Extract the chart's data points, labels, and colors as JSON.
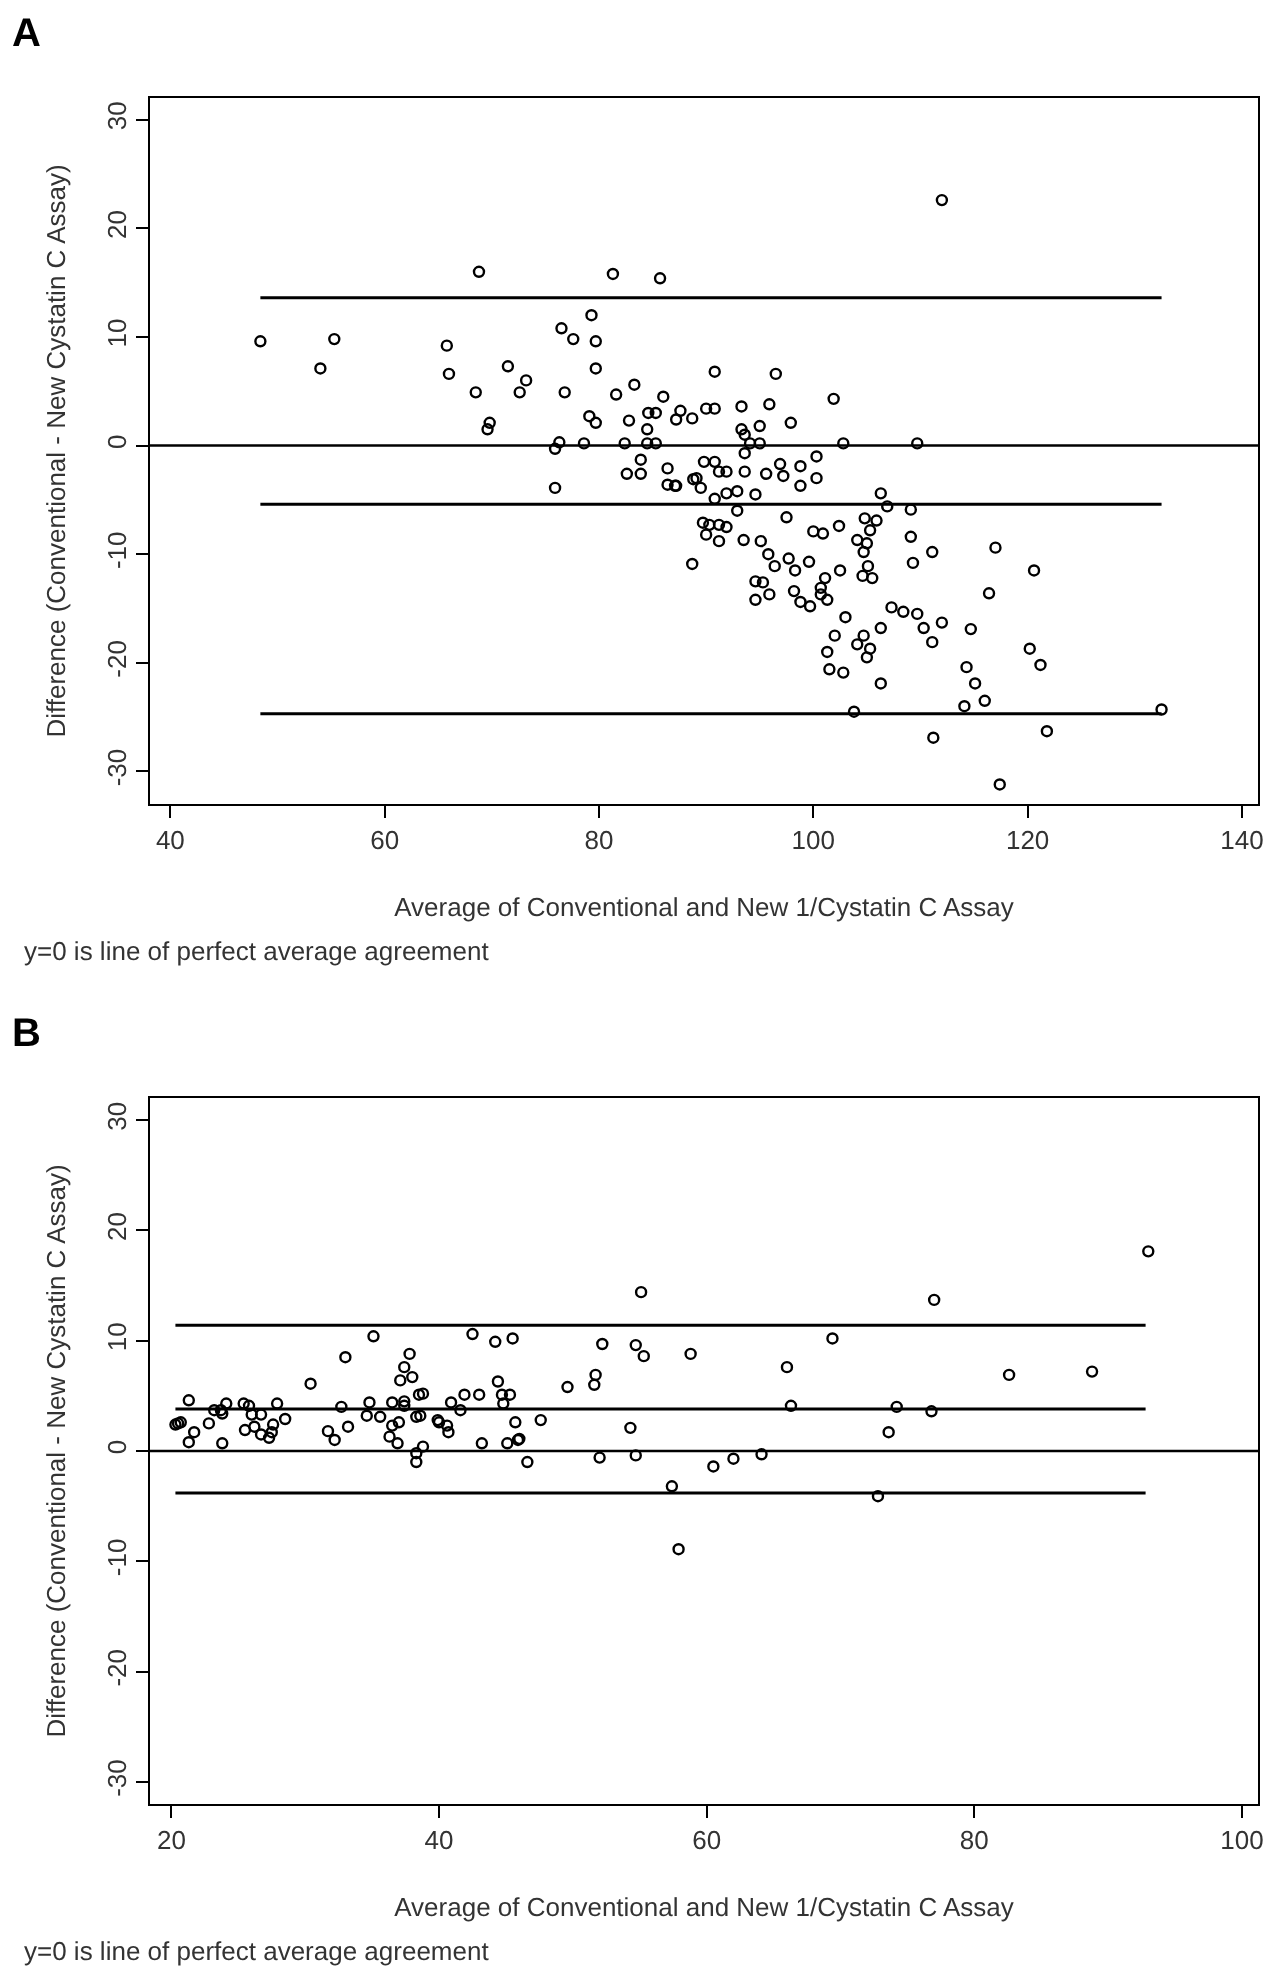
{
  "chart_data": [
    {
      "type": "scatter",
      "title": "A",
      "xlabel": "Average of Conventional and New 1/Cystatin C Assay",
      "ylabel": "Difference (Conventional - New Cystatin C Assay)",
      "annotations": [
        "y=0 is line of perfect average agreement"
      ],
      "xlim": [
        38.1,
        141.5
      ],
      "ylim": [
        -33,
        32
      ],
      "xticks": [
        40,
        60,
        80,
        100,
        120,
        140
      ],
      "yticks": [
        -30,
        -20,
        -10,
        0,
        10,
        20,
        30
      ],
      "ref_lines": [
        {
          "axis": "y",
          "value": 0,
          "color": "#000000"
        }
      ],
      "series": [
        {
          "marker": "circle",
          "color": "#000000",
          "x": [
            48.4,
            54.0,
            55.3,
            68.8,
            65.8,
            66.0,
            68.5,
            69.8,
            69.6,
            71.5,
            72.6,
            73.2,
            75.9,
            76.3,
            75.9,
            76.5,
            77.6,
            76.8,
            78.6,
            79.3,
            79.7,
            79.7,
            79.1,
            79.7,
            81.3,
            81.6,
            82.4,
            82.6,
            82.8,
            83.3,
            83.9,
            83.9,
            84.5,
            84.6,
            85.3,
            84.5,
            85.3,
            85.7,
            86.0,
            86.4,
            86.4,
            87.2,
            87.2,
            87.6,
            88.7,
            88.7,
            88.8,
            112.0,
            90.8,
            96.5,
            101.9,
            90.0,
            90.8,
            93.3,
            95.9,
            97.9,
            93.3,
            95.0,
            93.6,
            94.1,
            95.0,
            102.8,
            109.7,
            93.6,
            87.1,
            89.1,
            89.5,
            89.8,
            90.8,
            91.2,
            91.9,
            90.8,
            91.9,
            92.9,
            93.6,
            94.6,
            95.6,
            96.9,
            97.2,
            98.8,
            98.8,
            100.3,
            100.3,
            92.9,
            89.7,
            90.0,
            90.3,
            91.2,
            91.9,
            91.2,
            93.5,
            95.1,
            95.8,
            96.4,
            97.5,
            97.7,
            99.6,
            98.3,
            100.0,
            100.9,
            101.1,
            100.7,
            102.4,
            102.5,
            104.1,
            104.7,
            105.0,
            105.1,
            105.3,
            104.8,
            105.9,
            106.3,
            106.9,
            109.1,
            104.6,
            105.5,
            109.1,
            109.3,
            111.1,
            117.0,
            120.6,
            116.4,
            94.6,
            95.3,
            94.6,
            95.9,
            98.2,
            98.8,
            99.7,
            100.7,
            101.3,
            103.0,
            102.0,
            101.3,
            101.5,
            102.8,
            104.1,
            104.7,
            105.3,
            105.0,
            106.3,
            107.3,
            108.4,
            109.7,
            110.3,
            111.1,
            112.0,
            114.7,
            106.3,
            114.3,
            115.1,
            116.0,
            114.1,
            103.8,
            111.2,
            117.4,
            121.8,
            120.2,
            121.2,
            132.5
          ],
          "values": [
            9.6,
            7.1,
            9.8,
            16.0,
            9.2,
            6.6,
            4.9,
            2.1,
            1.5,
            7.3,
            4.9,
            6.0,
            -0.3,
            0.3,
            -3.9,
            10.8,
            9.8,
            4.9,
            0.2,
            12.0,
            9.6,
            7.1,
            2.7,
            2.1,
            15.8,
            4.7,
            0.2,
            -2.6,
            2.3,
            5.6,
            -1.3,
            -2.6,
            1.5,
            3.0,
            3.0,
            0.2,
            0.2,
            15.4,
            4.5,
            -2.1,
            -3.6,
            -3.7,
            2.4,
            3.2,
            2.5,
            -10.9,
            -3.1,
            22.6,
            6.8,
            6.6,
            4.3,
            3.4,
            3.4,
            3.6,
            3.8,
            2.1,
            1.5,
            1.8,
            1.0,
            0.2,
            0.2,
            0.2,
            0.2,
            -0.7,
            -3.7,
            -3.0,
            -3.9,
            -1.5,
            -1.5,
            -2.4,
            -2.4,
            -4.9,
            -4.4,
            -4.2,
            -2.4,
            -4.5,
            -2.6,
            -1.7,
            -2.8,
            -1.9,
            -3.7,
            -1.0,
            -3.0,
            -6.0,
            -7.1,
            -8.2,
            -7.3,
            -7.3,
            -7.5,
            -8.8,
            -8.7,
            -8.8,
            -10.0,
            -11.1,
            -6.6,
            -10.4,
            -10.7,
            -11.5,
            -7.9,
            -8.1,
            -12.2,
            -13.1,
            -7.4,
            -11.5,
            -8.7,
            -9.8,
            -9.0,
            -11.1,
            -7.8,
            -6.7,
            -6.9,
            -4.4,
            -5.6,
            -5.9,
            -12.0,
            -12.2,
            -8.4,
            -10.8,
            -9.8,
            -9.4,
            -11.5,
            -13.6,
            -12.5,
            -12.6,
            -14.2,
            -13.7,
            -13.4,
            -14.4,
            -14.8,
            -13.7,
            -14.2,
            -15.8,
            -17.5,
            -19.0,
            -20.6,
            -20.9,
            -18.3,
            -17.5,
            -18.7,
            -19.5,
            -16.8,
            -14.9,
            -15.3,
            -15.5,
            -16.8,
            -18.1,
            -16.3,
            -16.9,
            -21.9,
            -20.4,
            -21.9,
            -23.5,
            -24.0,
            -24.5,
            -26.9,
            -31.2,
            -26.3,
            -18.7,
            -20.2,
            -24.3
          ]
        },
        {
          "type": "line",
          "color": "#000000",
          "x": [
            48.4,
            132.5
          ],
          "values": [
            13.6,
            13.6
          ]
        },
        {
          "type": "line",
          "color": "#000000",
          "x": [
            48.4,
            132.5
          ],
          "values": [
            -5.4,
            -5.4
          ]
        },
        {
          "type": "line",
          "color": "#000000",
          "x": [
            48.4,
            132.5
          ],
          "values": [
            -24.7,
            -24.7
          ]
        }
      ]
    },
    {
      "type": "scatter",
      "title": "B",
      "xlabel": "Average of Conventional and New 1/Cystatin C Assay",
      "ylabel": "Difference (Conventional - New Cystatin C Assay)",
      "annotations": [
        "y=0 is line of perfect average agreement"
      ],
      "xlim": [
        18.4,
        101.2
      ],
      "ylim": [
        -32,
        32
      ],
      "xticks": [
        20,
        40,
        60,
        80,
        100
      ],
      "yticks": [
        -30,
        -20,
        -10,
        0,
        10,
        20,
        30
      ],
      "ref_lines": [
        {
          "axis": "y",
          "value": 0,
          "color": "#000000"
        }
      ],
      "series": [
        {
          "marker": "circle",
          "color": "#000000",
          "x": [
            20.3,
            20.5,
            20.7,
            21.3,
            21.3,
            21.7,
            22.8,
            23.2,
            23.7,
            23.8,
            23.8,
            24.1,
            25.4,
            25.8,
            25.5,
            26.0,
            26.2,
            26.7,
            26.7,
            27.3,
            27.5,
            27.6,
            27.9,
            28.5,
            30.4,
            31.7,
            32.2,
            32.7,
            33.0,
            33.2,
            34.6,
            34.8,
            35.1,
            35.6,
            36.3,
            36.5,
            36.5,
            36.9,
            37.0,
            37.1,
            37.4,
            37.4,
            37.4,
            37.8,
            38.0,
            38.3,
            38.3,
            38.3,
            38.5,
            38.6,
            38.8,
            38.8,
            39.9,
            40.0,
            40.6,
            40.7,
            40.9,
            41.6,
            41.9,
            42.5,
            43.0,
            43.2,
            44.2,
            44.4,
            44.7,
            44.8,
            45.3,
            45.5,
            45.1,
            45.7,
            45.9,
            46.0,
            46.6,
            47.6,
            49.6,
            51.6,
            51.7,
            52.0,
            52.2,
            54.3,
            54.7,
            54.7,
            55.1,
            55.3,
            57.4,
            57.9,
            58.8,
            60.5,
            62.0,
            64.1,
            66.0,
            66.3,
            69.4,
            72.8,
            73.6,
            74.2,
            76.8,
            77.0,
            82.6,
            88.8,
            93.0
          ],
          "values": [
            2.4,
            2.5,
            2.6,
            4.6,
            0.8,
            1.7,
            2.5,
            3.7,
            3.7,
            3.4,
            0.7,
            4.3,
            4.3,
            4.1,
            1.9,
            3.3,
            2.2,
            3.3,
            1.5,
            1.2,
            1.7,
            2.4,
            4.3,
            2.9,
            6.1,
            1.8,
            1.0,
            4.0,
            8.5,
            2.2,
            3.2,
            4.4,
            10.4,
            3.1,
            1.3,
            4.4,
            2.3,
            0.7,
            2.6,
            6.4,
            7.6,
            4.5,
            4.1,
            8.8,
            6.7,
            3.1,
            -0.2,
            -1.0,
            5.1,
            3.2,
            5.2,
            0.4,
            2.8,
            2.6,
            2.3,
            1.7,
            4.4,
            3.7,
            5.1,
            10.6,
            5.1,
            0.7,
            9.9,
            6.3,
            5.1,
            4.3,
            5.1,
            10.2,
            0.7,
            2.6,
            1.0,
            1.1,
            -1.0,
            2.8,
            5.8,
            6.0,
            6.9,
            -0.6,
            9.7,
            2.1,
            9.6,
            -0.4,
            14.4,
            8.6,
            -3.2,
            -8.9,
            8.8,
            -1.4,
            -0.7,
            -0.3,
            7.6,
            4.1,
            10.2,
            -4.1,
            1.7,
            4.0,
            3.6,
            13.7,
            6.9,
            7.2,
            18.1
          ]
        },
        {
          "type": "line",
          "color": "#000000",
          "x": [
            20.3,
            92.8
          ],
          "values": [
            11.4,
            11.4
          ]
        },
        {
          "type": "line",
          "color": "#000000",
          "x": [
            20.3,
            92.8
          ],
          "values": [
            3.8,
            3.8
          ]
        },
        {
          "type": "line",
          "color": "#000000",
          "x": [
            20.3,
            92.8
          ],
          "values": [
            -3.8,
            -3.8
          ]
        }
      ]
    }
  ]
}
